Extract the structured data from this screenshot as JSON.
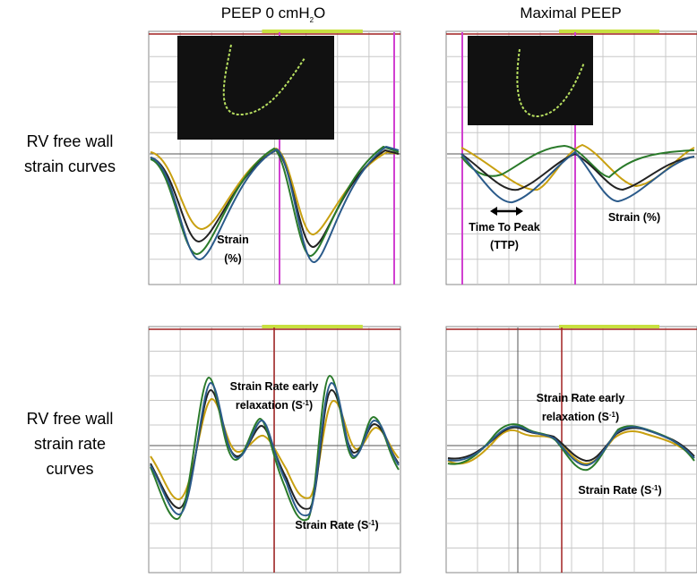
{
  "columns": [
    {
      "pre": "PEEP 0 cmH",
      "sub": "2",
      "post": "O"
    },
    {
      "text": "Maximal PEEP"
    }
  ],
  "rows": [
    [
      "RV free wall",
      "strain curves"
    ],
    [
      "RV free wall",
      "strain rate",
      "curves"
    ]
  ],
  "annotations": {
    "strain_left": [
      "Strain",
      "(%)"
    ],
    "ttp": [
      "Time To Peak",
      "(TTP)"
    ],
    "strain_right": "Strain (%)",
    "sr_early_left": {
      "line1": "Strain Rate early",
      "line2": "relaxation (S",
      "sup": "-1",
      "tail": ")"
    },
    "sr_left": {
      "text": "Strain Rate (S",
      "sup": "-1",
      "tail": ")"
    },
    "sr_early_right": {
      "line1": "Strain Rate early",
      "line2": "relaxation (S",
      "sup": "-1",
      "tail": ")"
    },
    "sr_right": {
      "text": "Strain Rate (S",
      "sup": "-1",
      "tail": ")"
    }
  }
}
